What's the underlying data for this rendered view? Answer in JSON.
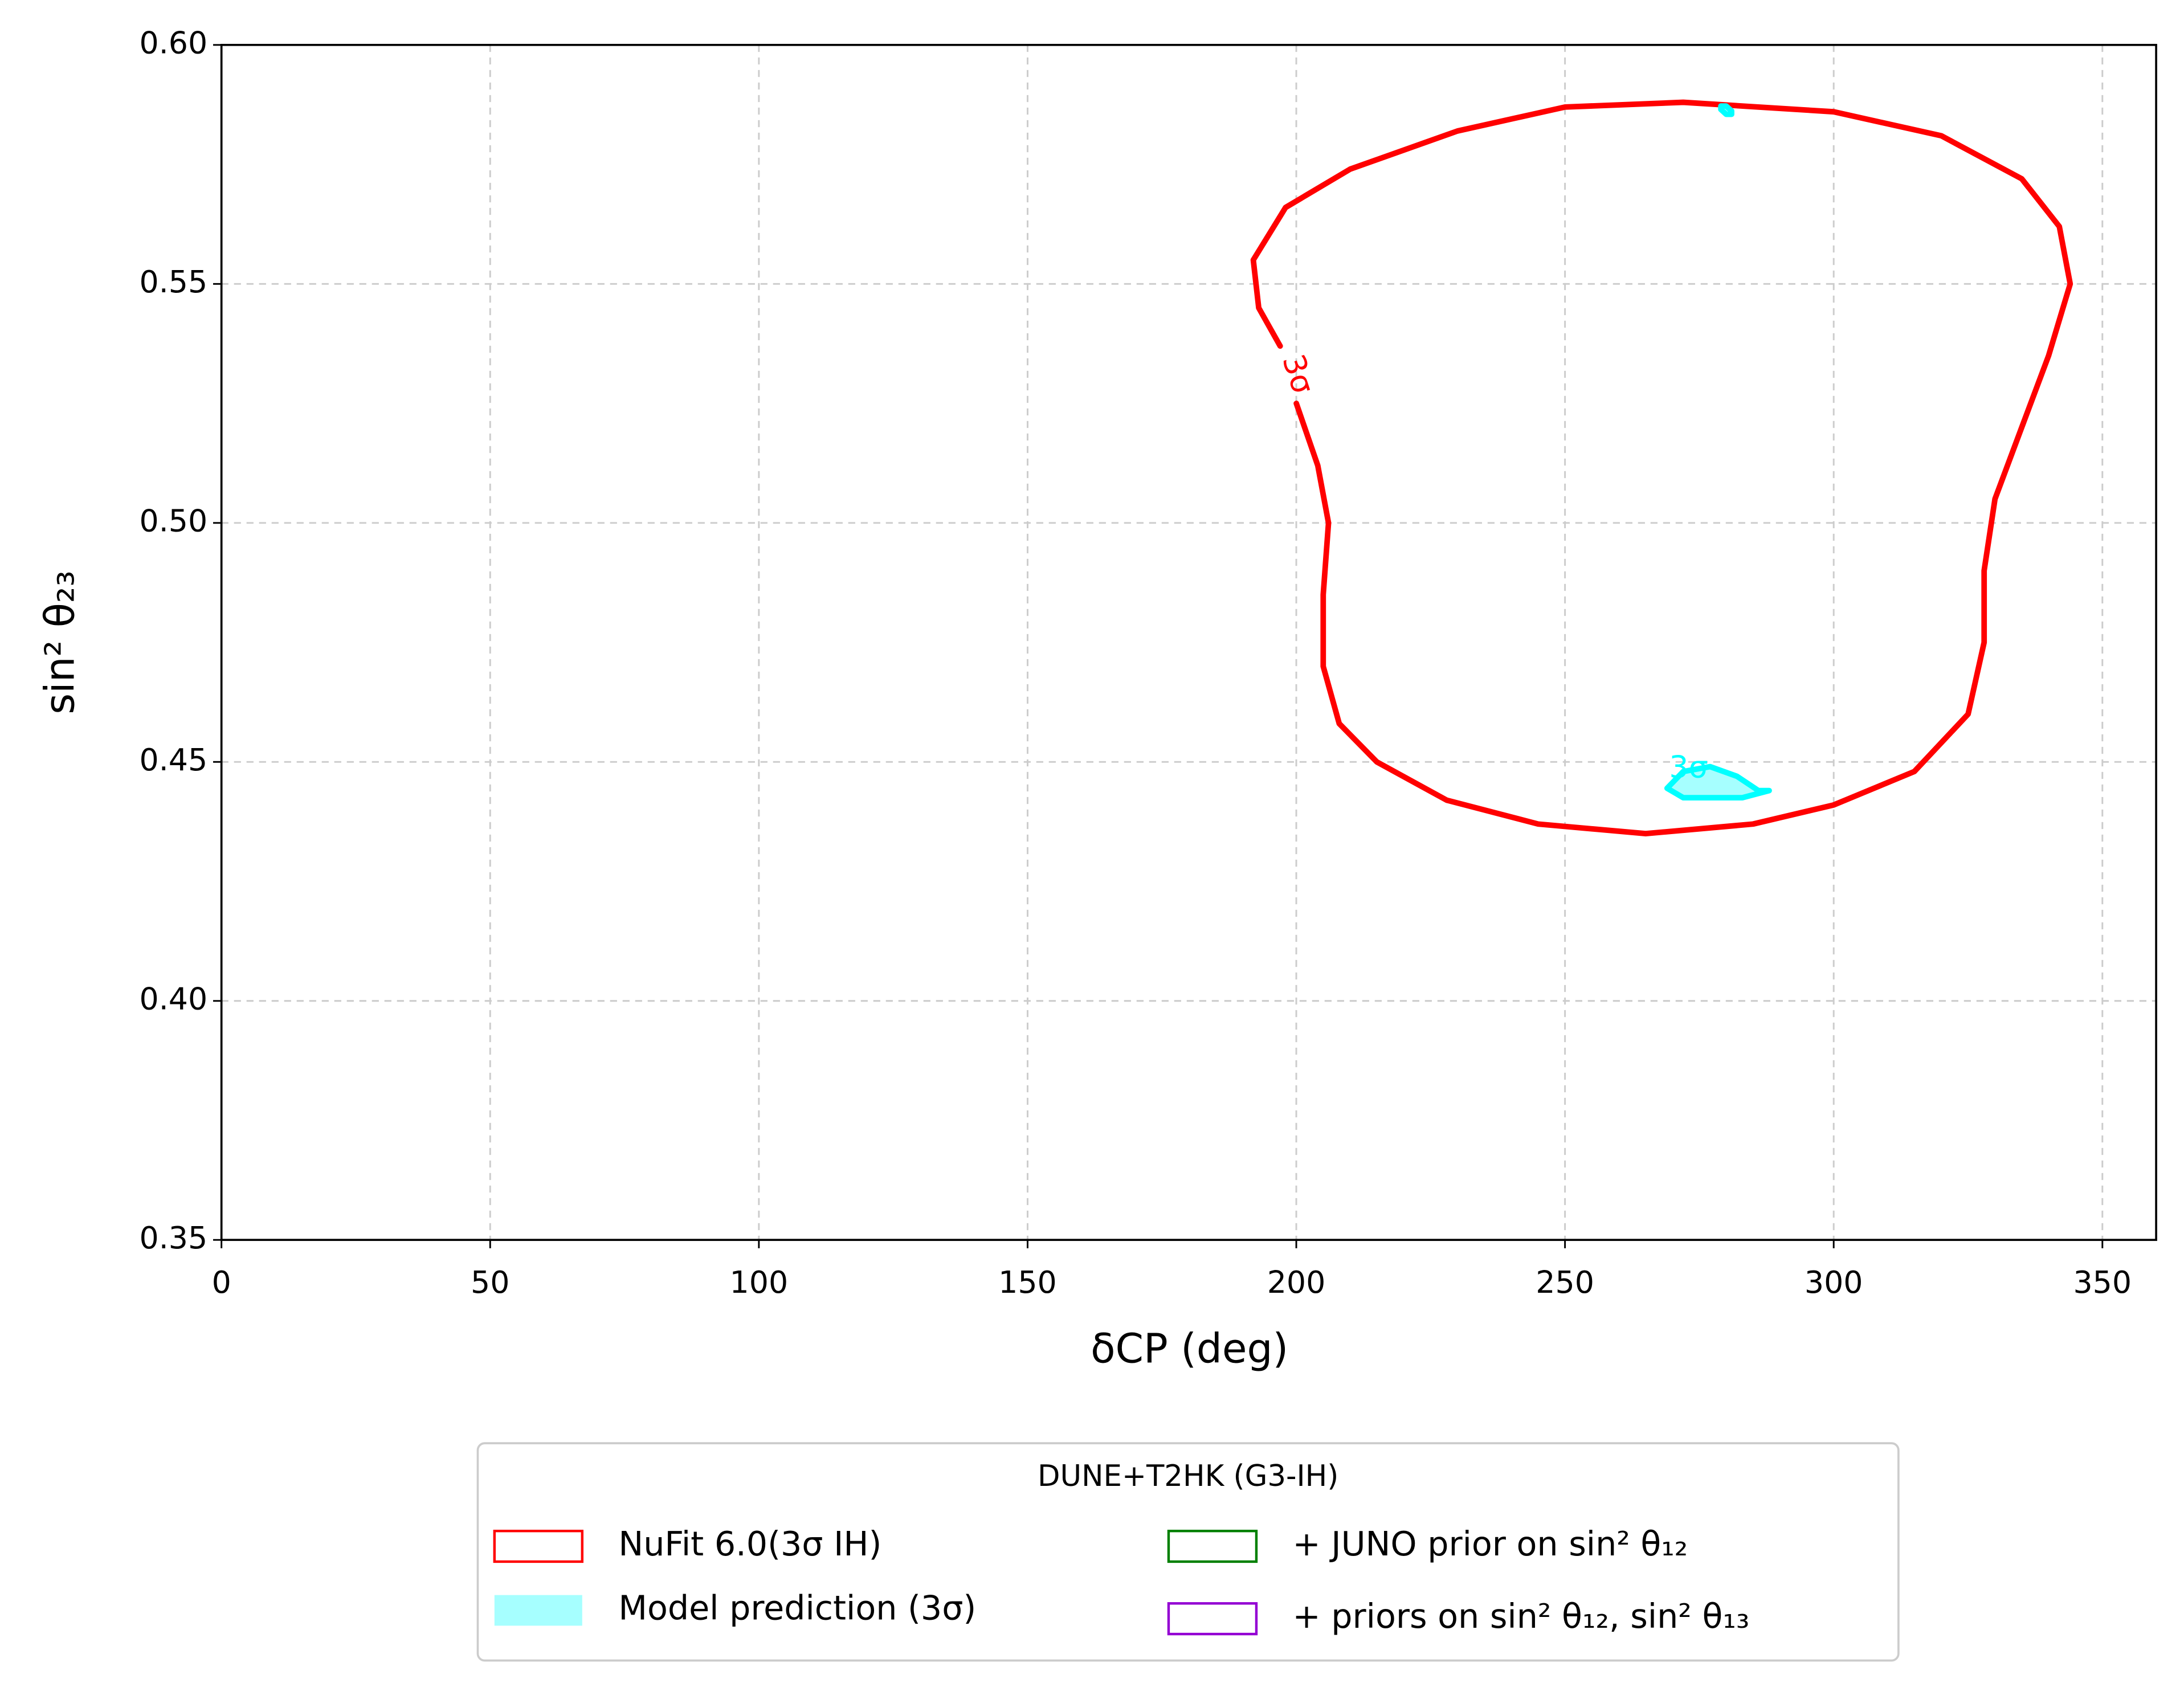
{
  "chart_data": {
    "type": "contour",
    "xlabel": "δCP (deg)",
    "ylabel": "sin² θ₂₃",
    "xlim": [
      0,
      360
    ],
    "ylim": [
      0.35,
      0.6
    ],
    "xticks": [
      0,
      50,
      100,
      150,
      200,
      250,
      300,
      350
    ],
    "yticks": [
      0.35,
      {
        "value": 0.4,
        "label": "0.40"
      },
      0.45,
      {
        "value": 0.5,
        "label": "0.50"
      },
      0.55,
      {
        "value": 0.6,
        "label": "0.60"
      }
    ],
    "grid": true,
    "series": [
      {
        "name": "NuFit 6.0(3σ IH)",
        "color": "#ff0000",
        "legend_kind": "outline",
        "x": [
          272,
          250,
          230,
          210,
          198,
          192,
          193,
          197,
          null,
          200,
          204,
          206,
          205,
          205,
          208,
          215,
          228,
          245,
          265,
          285,
          300,
          315,
          325,
          328,
          328,
          330,
          335,
          340,
          344,
          342,
          335,
          320,
          300,
          272
        ],
        "values": [
          0.588,
          0.587,
          0.582,
          0.574,
          0.566,
          0.555,
          0.545,
          0.537,
          null,
          0.525,
          0.512,
          0.5,
          0.485,
          0.47,
          0.458,
          0.45,
          0.442,
          0.437,
          0.435,
          0.437,
          0.441,
          0.448,
          0.46,
          0.475,
          0.49,
          0.505,
          0.52,
          0.535,
          0.55,
          0.562,
          0.572,
          0.581,
          0.586,
          0.588
        ]
      },
      {
        "name": "Model prediction (3σ)",
        "color": "#00ffff",
        "fill": true,
        "legend_kind": "filled",
        "x": [
          269,
          272,
          277,
          282,
          286,
          288,
          283,
          272,
          269,
          null,
          279,
          280,
          281,
          281,
          280,
          279,
          279
        ],
        "values": [
          0.4445,
          0.448,
          0.449,
          0.447,
          0.444,
          0.444,
          0.4425,
          0.4425,
          0.4445,
          null,
          0.5872,
          0.5872,
          0.5862,
          0.5855,
          0.5855,
          0.5865,
          0.5872
        ]
      },
      {
        "name": "+ JUNO prior on sin² θ₁₂",
        "color": "#008000",
        "legend_kind": "outline",
        "x": [],
        "values": []
      },
      {
        "name": "+ priors on sin² θ₁₂, sin² θ₁₃",
        "color": "#9400d3",
        "legend_kind": "outline",
        "x": [],
        "values": []
      }
    ],
    "contour_labels": [
      {
        "text": "3σ",
        "x": 200,
        "y": 0.531,
        "color": "#ff0000",
        "rotation": 72
      },
      {
        "text": "3σ",
        "x": 273,
        "y": 0.4485,
        "color": "#00ffff",
        "rotation": 0
      }
    ],
    "legend_title": "DUNE+T2HK (G3-IH)",
    "legend_position": "lower center outside"
  }
}
